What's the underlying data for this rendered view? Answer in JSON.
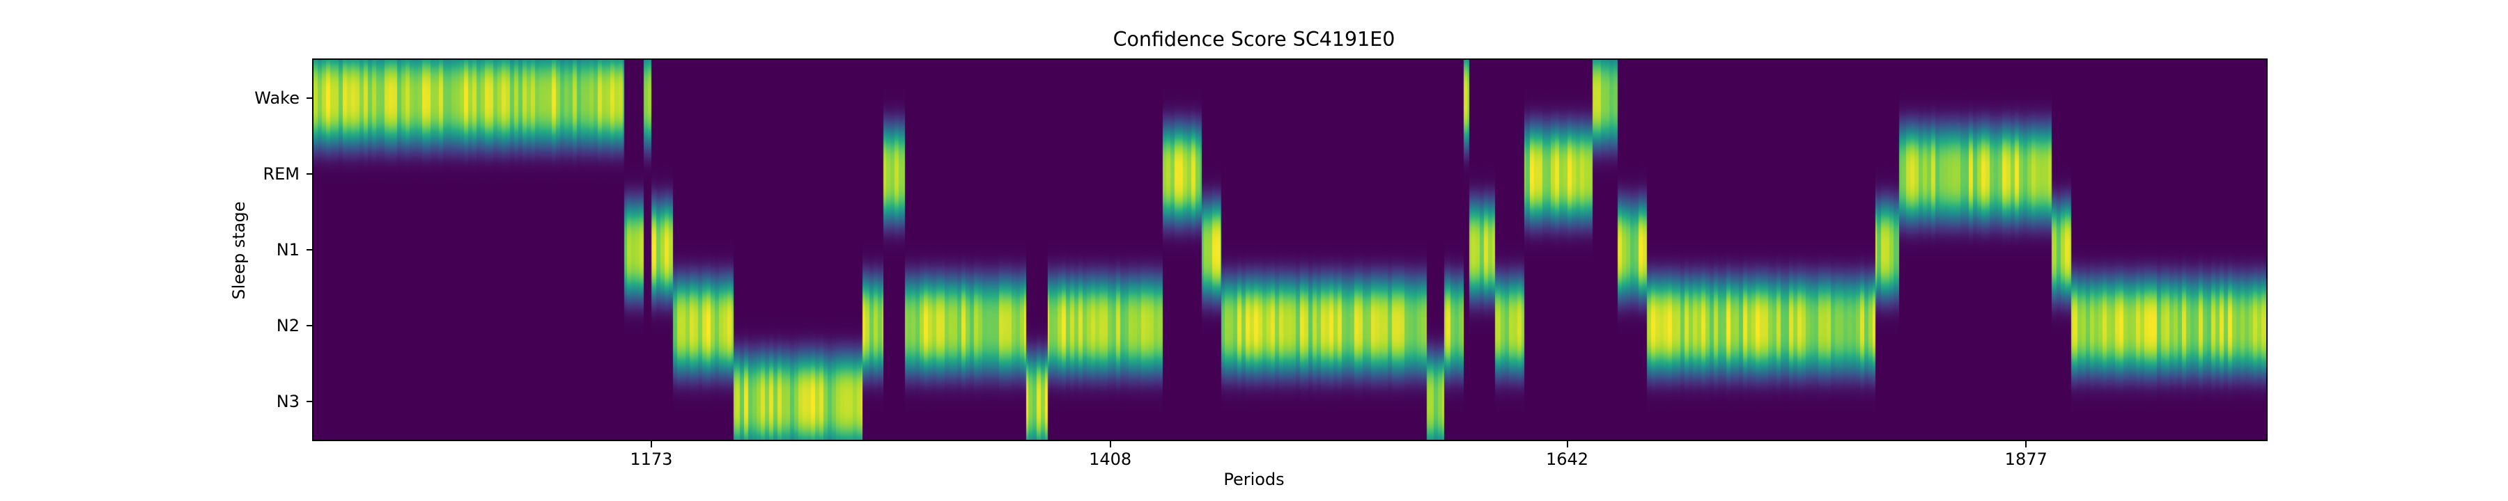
{
  "chart_data": {
    "type": "heatmap",
    "title": "Confidence Score SC4191E0",
    "xlabel": "Periods",
    "ylabel": "Sleep stage",
    "x_range": [
      1000,
      2000
    ],
    "x_ticks": [
      1173,
      1408,
      1642,
      1877
    ],
    "y_categories": [
      "Wake",
      "REM",
      "N1",
      "N2",
      "N3"
    ],
    "colormap": "viridis",
    "value_range": [
      0,
      1
    ],
    "colorbar": false,
    "grid": false,
    "dominant_stage_segments": [
      {
        "start": 1000,
        "end": 1159,
        "stage": "Wake"
      },
      {
        "start": 1159,
        "end": 1169,
        "stage": "N1"
      },
      {
        "start": 1169,
        "end": 1173,
        "stage": "Wake"
      },
      {
        "start": 1173,
        "end": 1184,
        "stage": "N1"
      },
      {
        "start": 1184,
        "end": 1215,
        "stage": "N2"
      },
      {
        "start": 1215,
        "end": 1281,
        "stage": "N3"
      },
      {
        "start": 1281,
        "end": 1292,
        "stage": "N2"
      },
      {
        "start": 1292,
        "end": 1303,
        "stage": "REM"
      },
      {
        "start": 1303,
        "end": 1365,
        "stage": "N2"
      },
      {
        "start": 1365,
        "end": 1376,
        "stage": "N3"
      },
      {
        "start": 1376,
        "end": 1435,
        "stage": "N2"
      },
      {
        "start": 1435,
        "end": 1455,
        "stage": "REM"
      },
      {
        "start": 1455,
        "end": 1465,
        "stage": "N1"
      },
      {
        "start": 1465,
        "end": 1570,
        "stage": "N2"
      },
      {
        "start": 1570,
        "end": 1579,
        "stage": "N3"
      },
      {
        "start": 1579,
        "end": 1589,
        "stage": "N2"
      },
      {
        "start": 1589,
        "end": 1592,
        "stage": "Wake"
      },
      {
        "start": 1592,
        "end": 1605,
        "stage": "N1"
      },
      {
        "start": 1605,
        "end": 1620,
        "stage": "N2"
      },
      {
        "start": 1620,
        "end": 1655,
        "stage": "REM"
      },
      {
        "start": 1655,
        "end": 1668,
        "stage": "Wake"
      },
      {
        "start": 1668,
        "end": 1683,
        "stage": "N1"
      },
      {
        "start": 1683,
        "end": 1800,
        "stage": "N2"
      },
      {
        "start": 1800,
        "end": 1812,
        "stage": "N1"
      },
      {
        "start": 1812,
        "end": 1890,
        "stage": "REM"
      },
      {
        "start": 1890,
        "end": 1900,
        "stage": "N1"
      },
      {
        "start": 1900,
        "end": 2000,
        "stage": "N2"
      }
    ]
  }
}
